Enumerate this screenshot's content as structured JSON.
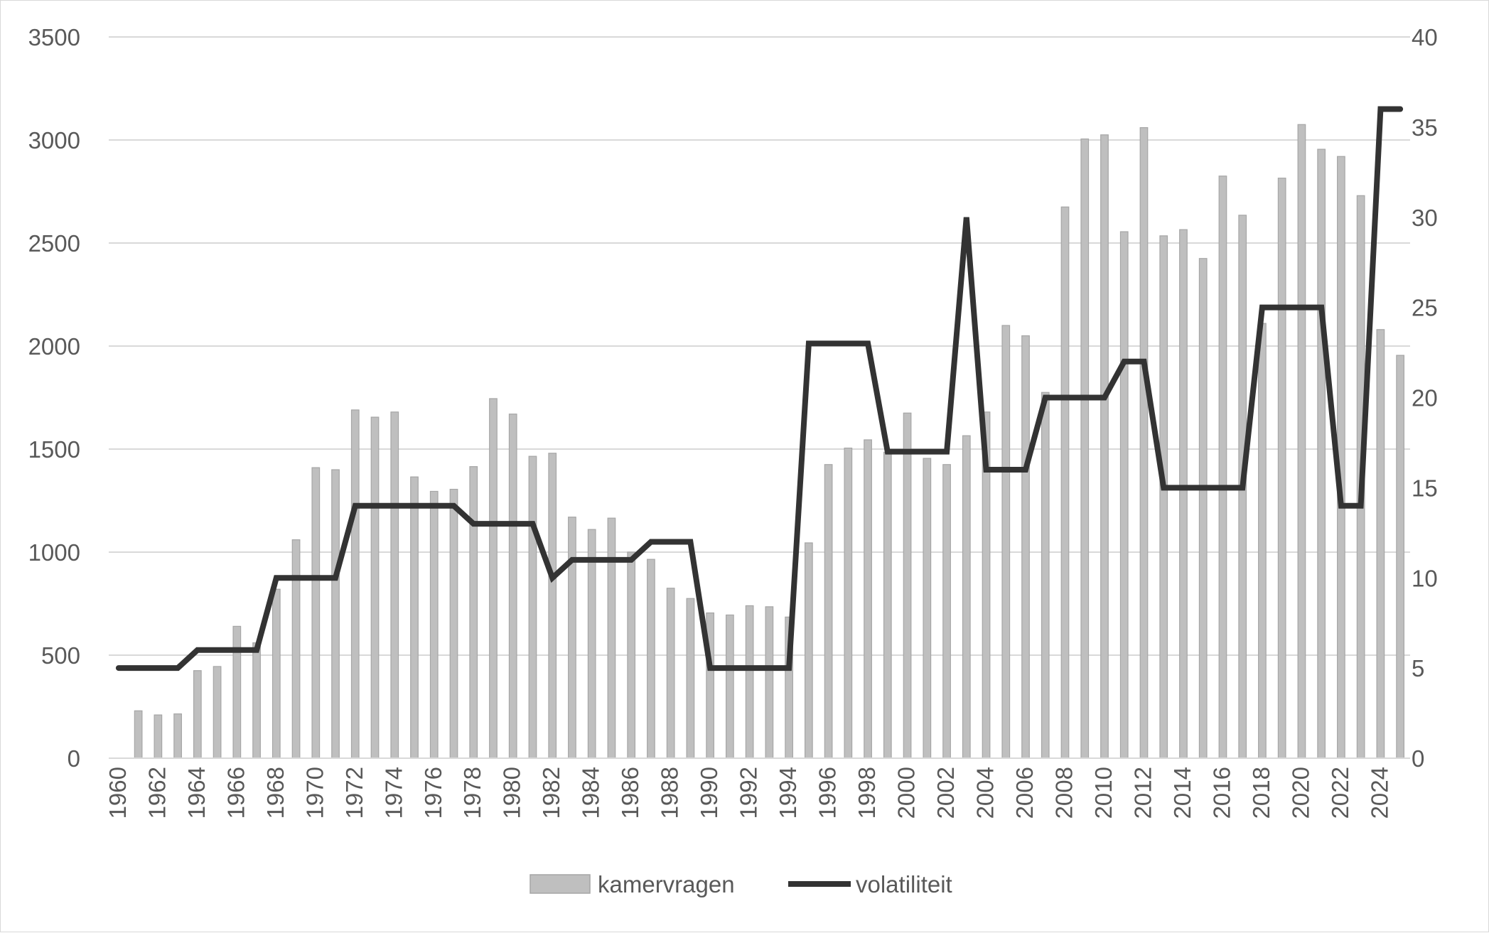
{
  "chart_data": {
    "type": "bar+line",
    "title": "",
    "xlabel": "",
    "ylabel": "",
    "x": [
      1960,
      1961,
      1962,
      1963,
      1964,
      1965,
      1966,
      1967,
      1968,
      1969,
      1970,
      1971,
      1972,
      1973,
      1974,
      1975,
      1976,
      1977,
      1978,
      1979,
      1980,
      1981,
      1982,
      1983,
      1984,
      1985,
      1986,
      1987,
      1988,
      1989,
      1990,
      1991,
      1992,
      1993,
      1994,
      1995,
      1996,
      1997,
      1998,
      1999,
      2000,
      2001,
      2002,
      2003,
      2004,
      2005,
      2006,
      2007,
      2008,
      2009,
      2010,
      2011,
      2012,
      2013,
      2014,
      2015,
      2016,
      2017,
      2018,
      2019,
      2020,
      2021,
      2022,
      2023,
      2024,
      2025
    ],
    "x_tick_labels": [
      "1960",
      "1962",
      "1964",
      "1966",
      "1968",
      "1970",
      "1972",
      "1974",
      "1976",
      "1978",
      "1980",
      "1982",
      "1984",
      "1986",
      "1988",
      "1990",
      "1992",
      "1994",
      "1996",
      "1998",
      "2000",
      "2002",
      "2004",
      "2006",
      "2008",
      "2010",
      "2012",
      "2014",
      "2016",
      "2018",
      "2020",
      "2022",
      "2024"
    ],
    "y_left": {
      "range": [
        0,
        3500
      ],
      "ticks": [
        "0",
        "500",
        "1000",
        "1500",
        "2000",
        "2500",
        "3000",
        "3500"
      ]
    },
    "y_right": {
      "range": [
        0,
        40
      ],
      "ticks": [
        "0",
        "5",
        "10",
        "15",
        "20",
        "25",
        "30",
        "35",
        "40"
      ]
    },
    "grid": "horizontal",
    "legend_position": "bottom",
    "series": [
      {
        "name": "kamervragen",
        "type": "bar",
        "axis": "left",
        "color": "#bfbfbf",
        "values": [
          null,
          230,
          210,
          215,
          425,
          445,
          640,
          560,
          820,
          1060,
          1410,
          1400,
          1690,
          1655,
          1680,
          1365,
          1295,
          1305,
          1415,
          1745,
          1670,
          1465,
          1480,
          1170,
          1110,
          1165,
          1000,
          965,
          825,
          775,
          705,
          695,
          740,
          735,
          685,
          1045,
          1425,
          1505,
          1545,
          1485,
          1675,
          1455,
          1425,
          1565,
          1680,
          2100,
          2050,
          1775,
          2675,
          3005,
          3025,
          2555,
          3060,
          2535,
          2565,
          2425,
          2825,
          2635,
          2110,
          2815,
          3075,
          2955,
          2920,
          2730,
          2080,
          1955
        ]
      },
      {
        "name": "volatiliteit",
        "type": "line",
        "axis": "right",
        "color": "#333333",
        "values": [
          5,
          5,
          5,
          5,
          6,
          6,
          6,
          6,
          10,
          10,
          10,
          10,
          14,
          14,
          14,
          14,
          14,
          14,
          13,
          13,
          13,
          13,
          10,
          11,
          11,
          11,
          11,
          12,
          12,
          12,
          5,
          5,
          5,
          5,
          5,
          23,
          23,
          23,
          23,
          17,
          17,
          17,
          17,
          30,
          16,
          16,
          16,
          20,
          20,
          20,
          20,
          22,
          22,
          15,
          15,
          15,
          15,
          15,
          25,
          25,
          25,
          25,
          14,
          14,
          36,
          36
        ]
      }
    ]
  }
}
